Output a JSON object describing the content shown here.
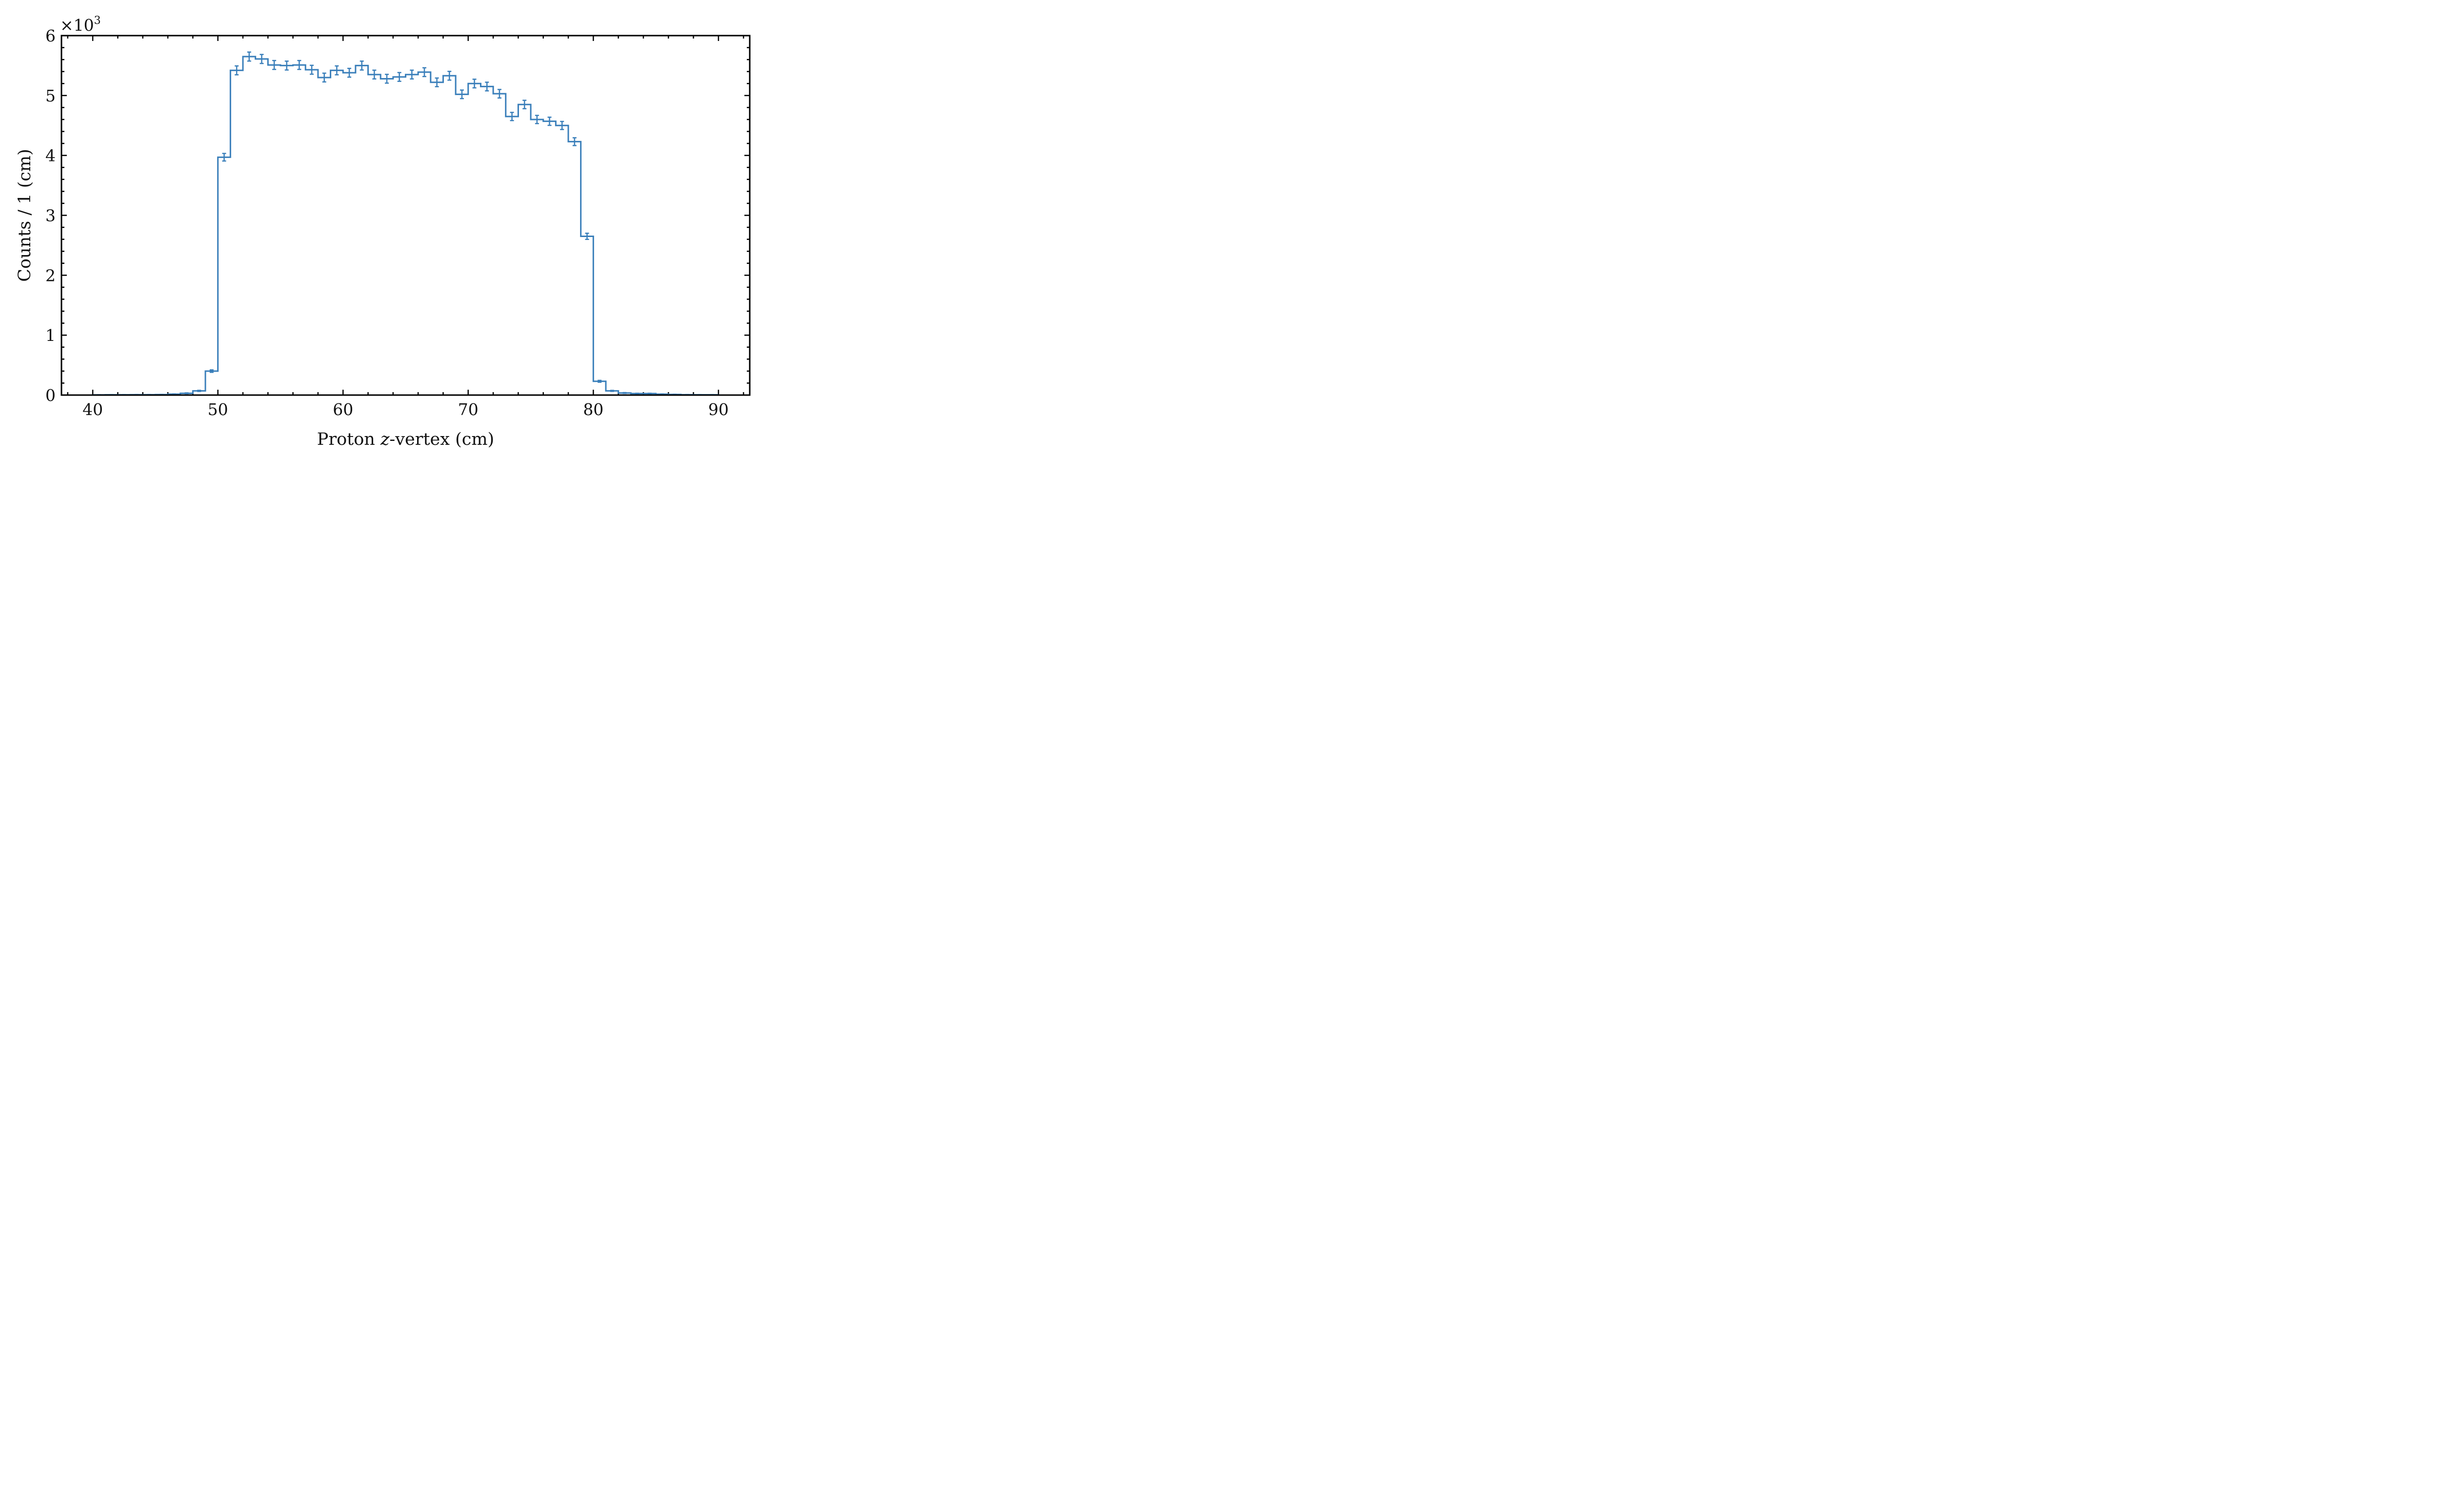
{
  "chart_data": {
    "type": "histogram",
    "xlabel_prefix": "Proton ",
    "xlabel_var": "z",
    "xlabel_suffix": "-vertex (cm)",
    "ylabel": "Counts / 1 (cm)",
    "y_multiplier_base": "×10",
    "y_multiplier_exp": "3",
    "xlim": [
      37.5,
      92.5
    ],
    "ylim": [
      0,
      6
    ],
    "x_ticks": [
      40,
      50,
      60,
      70,
      80,
      90
    ],
    "y_ticks": [
      0,
      1,
      2,
      3,
      4,
      5,
      6
    ],
    "bin_width": 1,
    "bin_edges_start": 40,
    "grid": false,
    "line_color": "#3a7fba",
    "values": [
      0.003,
      0.005,
      0.005,
      0.006,
      0.006,
      0.008,
      0.015,
      0.03,
      0.07,
      0.4,
      3.97,
      5.42,
      5.65,
      5.61,
      5.51,
      5.5,
      5.51,
      5.43,
      5.3,
      5.42,
      5.38,
      5.5,
      5.35,
      5.28,
      5.31,
      5.35,
      5.39,
      5.22,
      5.33,
      5.02,
      5.2,
      5.15,
      5.03,
      4.65,
      4.85,
      4.6,
      4.57,
      4.5,
      4.23,
      2.65,
      0.23,
      0.07,
      0.035,
      0.025,
      0.025,
      0.015,
      0.01,
      0.006,
      0.005,
      0.005
    ],
    "errors": [
      0.002,
      0.002,
      0.002,
      0.002,
      0.002,
      0.003,
      0.004,
      0.006,
      0.009,
      0.02,
      0.063,
      0.074,
      0.075,
      0.075,
      0.074,
      0.074,
      0.074,
      0.074,
      0.073,
      0.074,
      0.073,
      0.074,
      0.073,
      0.073,
      0.073,
      0.073,
      0.073,
      0.072,
      0.073,
      0.071,
      0.072,
      0.072,
      0.071,
      0.068,
      0.07,
      0.068,
      0.068,
      0.067,
      0.065,
      0.051,
      0.015,
      0.008,
      0.006,
      0.005,
      0.005,
      0.004,
      0.003,
      0.002,
      0.002,
      0.002
    ]
  }
}
